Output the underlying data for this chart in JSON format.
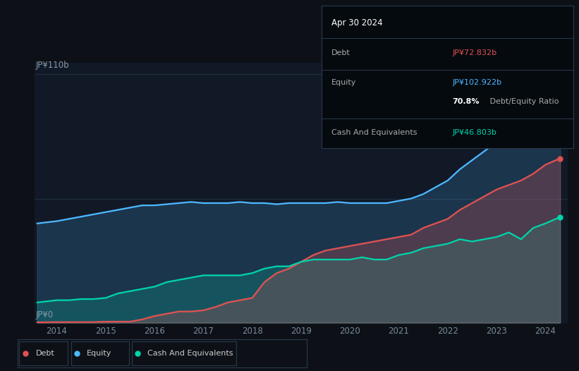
{
  "bg_color": "#0d1117",
  "plot_bg_color": "#111927",
  "title": "Apr 30 2024",
  "ylabel_top": "JP¥110b",
  "ylabel_zero": "JP¥0",
  "y_max": 115,
  "y_min": 0,
  "x_ticks": [
    2014,
    2015,
    2016,
    2017,
    2018,
    2019,
    2020,
    2021,
    2022,
    2023,
    2024
  ],
  "debt_color": "#e05252",
  "equity_color": "#4db8ff",
  "cash_color": "#00d4aa",
  "tooltip_bg": "#050a0f",
  "tooltip_border": "#2a3a4a",
  "debt_label": "Debt",
  "equity_label": "Equity",
  "cash_label": "Cash And Equivalents",
  "debt_value": "JP¥72.832b",
  "equity_value": "JP¥102.922b",
  "ratio_value": "70.8%",
  "cash_value": "JP¥46.803b",
  "equity_x": [
    2013.6,
    2014.0,
    2014.25,
    2014.5,
    2014.75,
    2015.0,
    2015.25,
    2015.5,
    2015.75,
    2016.0,
    2016.25,
    2016.5,
    2016.75,
    2017.0,
    2017.25,
    2017.5,
    2017.75,
    2018.0,
    2018.25,
    2018.5,
    2018.75,
    2019.0,
    2019.25,
    2019.5,
    2019.75,
    2020.0,
    2020.25,
    2020.5,
    2020.75,
    2021.0,
    2021.25,
    2021.5,
    2021.75,
    2022.0,
    2022.25,
    2022.5,
    2022.75,
    2023.0,
    2023.25,
    2023.5,
    2023.75,
    2024.0,
    2024.3
  ],
  "equity_y": [
    44,
    45,
    46,
    47,
    48,
    49,
    50,
    51,
    52,
    52,
    52.5,
    53,
    53.5,
    53,
    53,
    53,
    53.5,
    53,
    53,
    52.5,
    53,
    53,
    53,
    53,
    53.5,
    53,
    53,
    53,
    53,
    54,
    55,
    57,
    60,
    63,
    68,
    72,
    76,
    80,
    85,
    88,
    95,
    100,
    102.9
  ],
  "debt_x": [
    2013.6,
    2014.0,
    2014.25,
    2014.5,
    2014.75,
    2015.0,
    2015.25,
    2015.5,
    2015.75,
    2016.0,
    2016.25,
    2016.5,
    2016.75,
    2017.0,
    2017.25,
    2017.5,
    2017.75,
    2018.0,
    2018.25,
    2018.5,
    2018.75,
    2019.0,
    2019.25,
    2019.5,
    2019.75,
    2020.0,
    2020.25,
    2020.5,
    2020.75,
    2021.0,
    2021.25,
    2021.5,
    2021.75,
    2022.0,
    2022.25,
    2022.5,
    2022.75,
    2023.0,
    2023.25,
    2023.5,
    2023.75,
    2024.0,
    2024.3
  ],
  "debt_y": [
    0.2,
    0.3,
    0.3,
    0.3,
    0.3,
    0.5,
    0.5,
    0.5,
    1.5,
    3,
    4,
    5,
    5,
    5.5,
    7,
    9,
    10,
    11,
    18,
    22,
    24,
    27,
    30,
    32,
    33,
    34,
    35,
    36,
    37,
    38,
    39,
    42,
    44,
    46,
    50,
    53,
    56,
    59,
    61,
    63,
    66,
    70,
    72.8
  ],
  "cash_x": [
    2013.6,
    2014.0,
    2014.25,
    2014.5,
    2014.75,
    2015.0,
    2015.25,
    2015.5,
    2015.75,
    2016.0,
    2016.25,
    2016.5,
    2016.75,
    2017.0,
    2017.25,
    2017.5,
    2017.75,
    2018.0,
    2018.25,
    2018.5,
    2018.75,
    2019.0,
    2019.25,
    2019.5,
    2019.75,
    2020.0,
    2020.25,
    2020.5,
    2020.75,
    2021.0,
    2021.25,
    2021.5,
    2021.75,
    2022.0,
    2022.25,
    2022.5,
    2022.75,
    2023.0,
    2023.25,
    2023.5,
    2023.75,
    2024.0,
    2024.3
  ],
  "cash_y": [
    9,
    10,
    10,
    10.5,
    10.5,
    11,
    13,
    14,
    15,
    16,
    18,
    19,
    20,
    21,
    21,
    21,
    21,
    22,
    24,
    25,
    25,
    27,
    28,
    28,
    28,
    28,
    29,
    28,
    28,
    30,
    31,
    33,
    34,
    35,
    37,
    36,
    37,
    38,
    40,
    37,
    42,
    44,
    46.8
  ]
}
